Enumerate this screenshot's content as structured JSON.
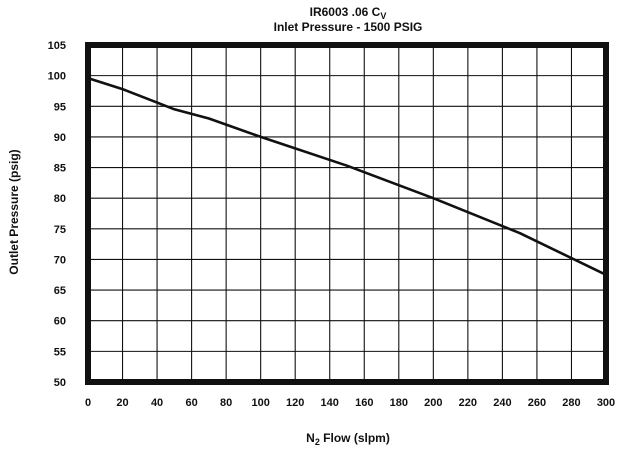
{
  "chart_data": {
    "type": "line",
    "title": "IR6003 .06 Cv",
    "title_main": "IR6003 .06 C",
    "title_subscript": "V",
    "subtitle": "Inlet Pressure - 1500 PSIG",
    "xlabel": "N2 Flow (slpm)",
    "xlabel_prefix": "N",
    "xlabel_subscript": "2",
    "xlabel_suffix": " Flow (slpm)",
    "ylabel": "Outlet Pressure (psig)",
    "xlim": [
      0,
      300
    ],
    "ylim": [
      50,
      105
    ],
    "x_ticks": [
      "0",
      "20",
      "40",
      "60",
      "80",
      "100",
      "120",
      "140",
      "160",
      "180",
      "200",
      "220",
      "240",
      "260",
      "280",
      "300"
    ],
    "y_ticks": [
      "50",
      "55",
      "60",
      "65",
      "70",
      "75",
      "80",
      "85",
      "90",
      "95",
      "100",
      "105"
    ],
    "grid": true,
    "legend": "none",
    "series": [
      {
        "x": [
          0,
          20,
          40,
          50,
          70,
          100,
          150,
          200,
          250,
          300
        ],
        "y": [
          99.6,
          97.8,
          95.6,
          94.5,
          93,
          90,
          85.3,
          80,
          74.3,
          67.5
        ]
      }
    ]
  },
  "colors": {
    "line": "#111111",
    "frame": "#111111",
    "grid": "#111111",
    "background": "#ffffff"
  }
}
